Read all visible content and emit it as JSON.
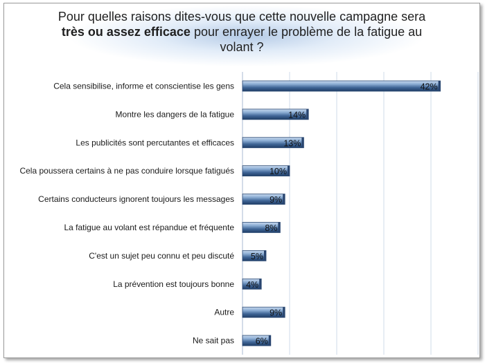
{
  "chart_data": {
    "type": "bar",
    "orientation": "horizontal",
    "title_parts": [
      {
        "text": "Pour quelles raisons dites-vous que cette nouvelle campagne sera ",
        "bold": false
      },
      {
        "text": "très ou assez efficace",
        "bold": true
      },
      {
        "text": " pour enrayer le problème de la fatigue au volant ?",
        "bold": false
      }
    ],
    "categories": [
      "Cela sensibilise, informe et conscientise les gens",
      "Montre les dangers de la fatigue",
      "Les publicités sont percutantes et efficaces",
      "Cela poussera certains à ne pas conduire lorsque fatigués",
      "Certains conducteurs ignorent toujours les messages",
      "La fatigue au volant est répandue et fréquente",
      "C'est un sujet peu connu et peu discuté",
      "La prévention est toujours bonne",
      "Autre",
      "Ne sait pas"
    ],
    "values": [
      42,
      14,
      13,
      10,
      9,
      8,
      5,
      4,
      9,
      6
    ],
    "value_labels": [
      "42%",
      "14%",
      "13%",
      "10%",
      "9%",
      "8%",
      "5%",
      "4%",
      "9%",
      "6%"
    ],
    "xlim": [
      0,
      50
    ],
    "grid": true,
    "legend": "none",
    "bar_color": "#4a6f9e"
  }
}
